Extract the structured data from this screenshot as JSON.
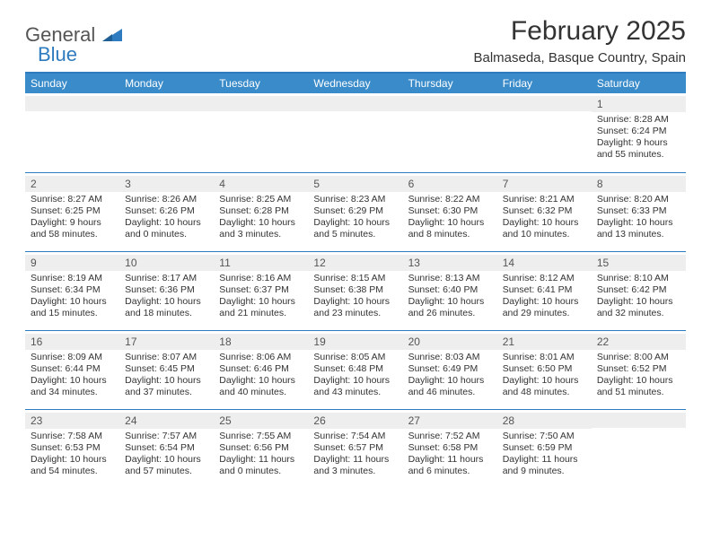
{
  "logo": {
    "word1": "General",
    "word2": "Blue",
    "color_general": "#555555",
    "color_blue": "#2f7bbf"
  },
  "title": "February 2025",
  "location": "Balmaseda, Basque Country, Spain",
  "colors": {
    "header_bar": "#3a8bc9",
    "header_text": "#ffffff",
    "row_divider": "#2f7bbf",
    "num_strip_bg": "#eeeeee",
    "body_text": "#333333",
    "background": "#ffffff"
  },
  "typography": {
    "title_fontsize": 30,
    "location_fontsize": 15,
    "dayhead_fontsize": 12,
    "daynum_fontsize": 12,
    "detail_fontsize": 10.5
  },
  "day_names": [
    "Sunday",
    "Monday",
    "Tuesday",
    "Wednesday",
    "Thursday",
    "Friday",
    "Saturday"
  ],
  "weeks": [
    [
      {
        "n": "",
        "sr": "",
        "ss": "",
        "dl": ""
      },
      {
        "n": "",
        "sr": "",
        "ss": "",
        "dl": ""
      },
      {
        "n": "",
        "sr": "",
        "ss": "",
        "dl": ""
      },
      {
        "n": "",
        "sr": "",
        "ss": "",
        "dl": ""
      },
      {
        "n": "",
        "sr": "",
        "ss": "",
        "dl": ""
      },
      {
        "n": "",
        "sr": "",
        "ss": "",
        "dl": ""
      },
      {
        "n": "1",
        "sr": "Sunrise: 8:28 AM",
        "ss": "Sunset: 6:24 PM",
        "dl": "Daylight: 9 hours and 55 minutes."
      }
    ],
    [
      {
        "n": "2",
        "sr": "Sunrise: 8:27 AM",
        "ss": "Sunset: 6:25 PM",
        "dl": "Daylight: 9 hours and 58 minutes."
      },
      {
        "n": "3",
        "sr": "Sunrise: 8:26 AM",
        "ss": "Sunset: 6:26 PM",
        "dl": "Daylight: 10 hours and 0 minutes."
      },
      {
        "n": "4",
        "sr": "Sunrise: 8:25 AM",
        "ss": "Sunset: 6:28 PM",
        "dl": "Daylight: 10 hours and 3 minutes."
      },
      {
        "n": "5",
        "sr": "Sunrise: 8:23 AM",
        "ss": "Sunset: 6:29 PM",
        "dl": "Daylight: 10 hours and 5 minutes."
      },
      {
        "n": "6",
        "sr": "Sunrise: 8:22 AM",
        "ss": "Sunset: 6:30 PM",
        "dl": "Daylight: 10 hours and 8 minutes."
      },
      {
        "n": "7",
        "sr": "Sunrise: 8:21 AM",
        "ss": "Sunset: 6:32 PM",
        "dl": "Daylight: 10 hours and 10 minutes."
      },
      {
        "n": "8",
        "sr": "Sunrise: 8:20 AM",
        "ss": "Sunset: 6:33 PM",
        "dl": "Daylight: 10 hours and 13 minutes."
      }
    ],
    [
      {
        "n": "9",
        "sr": "Sunrise: 8:19 AM",
        "ss": "Sunset: 6:34 PM",
        "dl": "Daylight: 10 hours and 15 minutes."
      },
      {
        "n": "10",
        "sr": "Sunrise: 8:17 AM",
        "ss": "Sunset: 6:36 PM",
        "dl": "Daylight: 10 hours and 18 minutes."
      },
      {
        "n": "11",
        "sr": "Sunrise: 8:16 AM",
        "ss": "Sunset: 6:37 PM",
        "dl": "Daylight: 10 hours and 21 minutes."
      },
      {
        "n": "12",
        "sr": "Sunrise: 8:15 AM",
        "ss": "Sunset: 6:38 PM",
        "dl": "Daylight: 10 hours and 23 minutes."
      },
      {
        "n": "13",
        "sr": "Sunrise: 8:13 AM",
        "ss": "Sunset: 6:40 PM",
        "dl": "Daylight: 10 hours and 26 minutes."
      },
      {
        "n": "14",
        "sr": "Sunrise: 8:12 AM",
        "ss": "Sunset: 6:41 PM",
        "dl": "Daylight: 10 hours and 29 minutes."
      },
      {
        "n": "15",
        "sr": "Sunrise: 8:10 AM",
        "ss": "Sunset: 6:42 PM",
        "dl": "Daylight: 10 hours and 32 minutes."
      }
    ],
    [
      {
        "n": "16",
        "sr": "Sunrise: 8:09 AM",
        "ss": "Sunset: 6:44 PM",
        "dl": "Daylight: 10 hours and 34 minutes."
      },
      {
        "n": "17",
        "sr": "Sunrise: 8:07 AM",
        "ss": "Sunset: 6:45 PM",
        "dl": "Daylight: 10 hours and 37 minutes."
      },
      {
        "n": "18",
        "sr": "Sunrise: 8:06 AM",
        "ss": "Sunset: 6:46 PM",
        "dl": "Daylight: 10 hours and 40 minutes."
      },
      {
        "n": "19",
        "sr": "Sunrise: 8:05 AM",
        "ss": "Sunset: 6:48 PM",
        "dl": "Daylight: 10 hours and 43 minutes."
      },
      {
        "n": "20",
        "sr": "Sunrise: 8:03 AM",
        "ss": "Sunset: 6:49 PM",
        "dl": "Daylight: 10 hours and 46 minutes."
      },
      {
        "n": "21",
        "sr": "Sunrise: 8:01 AM",
        "ss": "Sunset: 6:50 PM",
        "dl": "Daylight: 10 hours and 48 minutes."
      },
      {
        "n": "22",
        "sr": "Sunrise: 8:00 AM",
        "ss": "Sunset: 6:52 PM",
        "dl": "Daylight: 10 hours and 51 minutes."
      }
    ],
    [
      {
        "n": "23",
        "sr": "Sunrise: 7:58 AM",
        "ss": "Sunset: 6:53 PM",
        "dl": "Daylight: 10 hours and 54 minutes."
      },
      {
        "n": "24",
        "sr": "Sunrise: 7:57 AM",
        "ss": "Sunset: 6:54 PM",
        "dl": "Daylight: 10 hours and 57 minutes."
      },
      {
        "n": "25",
        "sr": "Sunrise: 7:55 AM",
        "ss": "Sunset: 6:56 PM",
        "dl": "Daylight: 11 hours and 0 minutes."
      },
      {
        "n": "26",
        "sr": "Sunrise: 7:54 AM",
        "ss": "Sunset: 6:57 PM",
        "dl": "Daylight: 11 hours and 3 minutes."
      },
      {
        "n": "27",
        "sr": "Sunrise: 7:52 AM",
        "ss": "Sunset: 6:58 PM",
        "dl": "Daylight: 11 hours and 6 minutes."
      },
      {
        "n": "28",
        "sr": "Sunrise: 7:50 AM",
        "ss": "Sunset: 6:59 PM",
        "dl": "Daylight: 11 hours and 9 minutes."
      },
      {
        "n": "",
        "sr": "",
        "ss": "",
        "dl": ""
      }
    ]
  ]
}
